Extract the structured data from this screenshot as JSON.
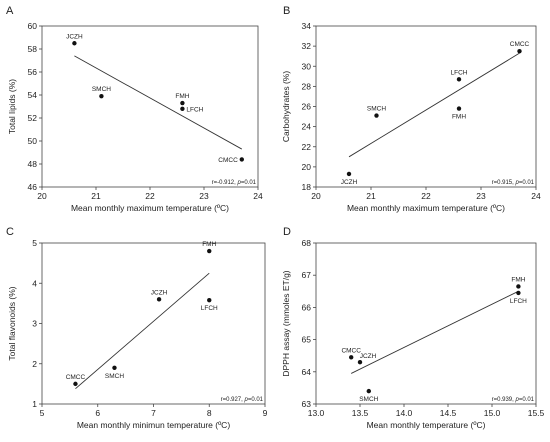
{
  "chart_data": [
    {
      "type": "scatter",
      "panel": "A",
      "xlabel": "Mean monthly maximum temperature (ºC)",
      "ylabel": "Total lipids (%)",
      "xlim": [
        20,
        24
      ],
      "ylim": [
        46,
        60
      ],
      "xticks": [
        20,
        21,
        22,
        23,
        24
      ],
      "yticks": [
        46,
        48,
        50,
        52,
        54,
        56,
        58,
        60
      ],
      "points": [
        {
          "label": "JCZH",
          "x": 20.6,
          "y": 58.5,
          "label_pos": "above"
        },
        {
          "label": "SMCH",
          "x": 21.1,
          "y": 53.9,
          "label_pos": "above"
        },
        {
          "label": "FMH",
          "x": 22.6,
          "y": 53.3,
          "label_pos": "above"
        },
        {
          "label": "LFCH",
          "x": 22.6,
          "y": 52.8,
          "label_pos": "right"
        },
        {
          "label": "CMCC",
          "x": 23.7,
          "y": 48.4,
          "label_pos": "left"
        }
      ],
      "trendline": {
        "x": [
          20.6,
          23.7
        ],
        "y": [
          57.4,
          49.3
        ]
      },
      "stat_text": "r=-0.912, ",
      "stat_p": "p",
      "stat_tail": "=0.01"
    },
    {
      "type": "scatter",
      "panel": "B",
      "xlabel": "Mean monthly maximum temperature (ºC)",
      "ylabel": "Carbohydrates (%)",
      "xlim": [
        20,
        24
      ],
      "ylim": [
        18,
        34
      ],
      "xticks": [
        20,
        21,
        22,
        23,
        24
      ],
      "yticks": [
        18,
        20,
        22,
        24,
        26,
        28,
        30,
        32,
        34
      ],
      "points": [
        {
          "label": "CMCC",
          "x": 23.7,
          "y": 31.5,
          "label_pos": "above"
        },
        {
          "label": "LFCH",
          "x": 22.6,
          "y": 28.7,
          "label_pos": "above"
        },
        {
          "label": "SMCH",
          "x": 21.1,
          "y": 25.1,
          "label_pos": "above"
        },
        {
          "label": "FMH",
          "x": 22.6,
          "y": 25.8,
          "label_pos": "below"
        },
        {
          "label": "JCZH",
          "x": 20.6,
          "y": 19.3,
          "label_pos": "below"
        }
      ],
      "trendline": {
        "x": [
          20.6,
          23.7
        ],
        "y": [
          21.0,
          31.3
        ]
      },
      "stat_text": "r=0.915, ",
      "stat_p": "p",
      "stat_tail": "=0.01"
    },
    {
      "type": "scatter",
      "panel": "C",
      "xlabel": "Mean monthly minimun temperature (ºC)",
      "ylabel": "Total flavonoids (%)",
      "xlim": [
        5,
        9
      ],
      "ylim": [
        1,
        5
      ],
      "xticks": [
        5,
        6,
        7,
        8,
        9
      ],
      "yticks": [
        1,
        2,
        3,
        4,
        5
      ],
      "points": [
        {
          "label": "FMH",
          "x": 8.0,
          "y": 4.8,
          "label_pos": "above"
        },
        {
          "label": "JCZH",
          "x": 7.1,
          "y": 3.6,
          "label_pos": "above"
        },
        {
          "label": "LFCH",
          "x": 8.0,
          "y": 3.58,
          "label_pos": "below"
        },
        {
          "label": "SMCH",
          "x": 6.3,
          "y": 1.9,
          "label_pos": "below"
        },
        {
          "label": "CMCC",
          "x": 5.6,
          "y": 1.5,
          "label_pos": "above"
        }
      ],
      "trendline": {
        "x": [
          5.6,
          8.0
        ],
        "y": [
          1.38,
          4.25
        ]
      },
      "stat_text": "r=0.927, ",
      "stat_p": "p",
      "stat_tail": "=0.01"
    },
    {
      "type": "scatter",
      "panel": "D",
      "xlabel": "Mean monthly temperature (ºC)",
      "ylabel": "DPPH assay (mmoles ET/g)",
      "xlim": [
        13.0,
        15.5
      ],
      "ylim": [
        63,
        68
      ],
      "xticks": [
        "13.0",
        "13.5",
        "14.0",
        "14.5",
        "15.0",
        "15.5"
      ],
      "yticks": [
        63,
        64,
        65,
        66,
        67,
        68
      ],
      "points": [
        {
          "label": "FMH",
          "x": 15.3,
          "y": 66.65,
          "label_pos": "above"
        },
        {
          "label": "LFCH",
          "x": 15.3,
          "y": 66.45,
          "label_pos": "below"
        },
        {
          "label": "CMCC",
          "x": 13.4,
          "y": 64.45,
          "label_pos": "above"
        },
        {
          "label": "JCZH",
          "x": 13.5,
          "y": 64.3,
          "label_pos": "aboveright"
        },
        {
          "label": "SMCH",
          "x": 13.6,
          "y": 63.4,
          "label_pos": "below"
        }
      ],
      "trendline": {
        "x": [
          13.4,
          15.3
        ],
        "y": [
          63.95,
          66.5
        ]
      },
      "stat_text": "r=0.939, ",
      "stat_p": "p",
      "stat_tail": "=0.01"
    }
  ]
}
